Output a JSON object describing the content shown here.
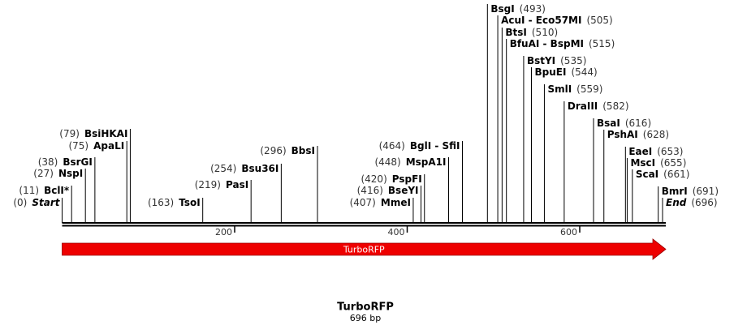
{
  "sequence": {
    "name": "TurboRFP",
    "length": {
      "value": 696,
      "label": "696 bp"
    }
  },
  "ruler": {
    "ticks": [
      200,
      400,
      600
    ]
  },
  "feature": {
    "name": "TurboRFP",
    "start": 0,
    "end": 696,
    "color": "#ee0000"
  },
  "sites": [
    {
      "name": "Start",
      "position": {
        "value": 0,
        "label": "(0)"
      },
      "italic": true
    },
    {
      "name": "BclI*",
      "position": {
        "value": 11,
        "label": "(11)"
      }
    },
    {
      "name": "NspI",
      "position": {
        "value": 27,
        "label": "(27)"
      }
    },
    {
      "name": "BsrGI",
      "position": {
        "value": 38,
        "label": "(38)"
      }
    },
    {
      "name": "ApaLI",
      "position": {
        "value": 75,
        "label": "(75)"
      }
    },
    {
      "name": "BsiHKAI",
      "position": {
        "value": 79,
        "label": "(79)"
      }
    },
    {
      "name": "TsoI",
      "position": {
        "value": 163,
        "label": "(163)"
      }
    },
    {
      "name": "PasI",
      "position": {
        "value": 219,
        "label": "(219)"
      }
    },
    {
      "name": "Bsu36I",
      "position": {
        "value": 254,
        "label": "(254)"
      }
    },
    {
      "name": "BbsI",
      "position": {
        "value": 296,
        "label": "(296)"
      }
    },
    {
      "name": "MmeI",
      "position": {
        "value": 407,
        "label": "(407)"
      }
    },
    {
      "name": "BseYI",
      "position": {
        "value": 416,
        "label": "(416)"
      }
    },
    {
      "name": "PspFI",
      "position": {
        "value": 420,
        "label": "(420)"
      }
    },
    {
      "name": "MspA1I",
      "position": {
        "value": 448,
        "label": "(448)"
      }
    },
    {
      "name": "BglI - SfiI",
      "position": {
        "value": 464,
        "label": "(464)"
      }
    },
    {
      "name": "BsgI",
      "position": {
        "value": 493,
        "label": "(493)"
      }
    },
    {
      "name": "AcuI - Eco57MI",
      "position": {
        "value": 505,
        "label": "(505)"
      }
    },
    {
      "name": "BtsI",
      "position": {
        "value": 510,
        "label": "(510)"
      }
    },
    {
      "name": "BfuAI - BspMI",
      "position": {
        "value": 515,
        "label": "(515)"
      }
    },
    {
      "name": "BstYI",
      "position": {
        "value": 535,
        "label": "(535)"
      }
    },
    {
      "name": "BpuEI",
      "position": {
        "value": 544,
        "label": "(544)"
      }
    },
    {
      "name": "SmlI",
      "position": {
        "value": 559,
        "label": "(559)"
      }
    },
    {
      "name": "DraIII",
      "position": {
        "value": 582,
        "label": "(582)"
      }
    },
    {
      "name": "BsaI",
      "position": {
        "value": 616,
        "label": "(616)"
      }
    },
    {
      "name": "PshAI",
      "position": {
        "value": 628,
        "label": "(628)"
      }
    },
    {
      "name": "EaeI",
      "position": {
        "value": 653,
        "label": "(653)"
      }
    },
    {
      "name": "MscI",
      "position": {
        "value": 655,
        "label": "(655)"
      }
    },
    {
      "name": "ScaI",
      "position": {
        "value": 661,
        "label": "(661)"
      }
    },
    {
      "name": "BmrI",
      "position": {
        "value": 691,
        "label": "(691)"
      }
    },
    {
      "name": "End",
      "position": {
        "value": 696,
        "label": "(696)"
      },
      "italic": true
    }
  ]
}
